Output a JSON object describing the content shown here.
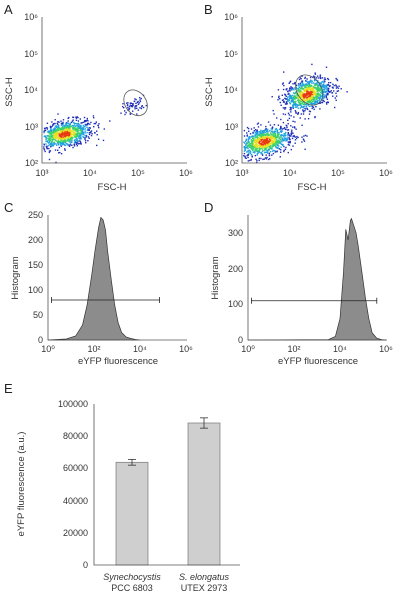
{
  "figure": {
    "panels": [
      "A",
      "B",
      "C",
      "D",
      "E"
    ]
  },
  "chart_data": [
    {
      "panel": "A",
      "type": "scatter",
      "xlabel": "FSC-H",
      "ylabel": "SSC-H",
      "xscale": "log",
      "yscale": "log",
      "xlim": [
        1000,
        1000000
      ],
      "ylim": [
        100,
        1000000
      ],
      "xticks": [
        "10³",
        "10⁴",
        "10⁵",
        "10⁶"
      ],
      "yticks": [
        "10²",
        "10³",
        "10⁴",
        "10⁵",
        "10⁶"
      ],
      "colormap": [
        "#1f2fb8",
        "#1fa0e0",
        "#3cd16a",
        "#e8e020",
        "#e83a10"
      ],
      "clusters": [
        {
          "center_log": [
            3.45,
            2.8
          ],
          "spread_log": [
            0.3,
            0.18
          ],
          "density": "high"
        },
        {
          "center_log": [
            4.9,
            3.6
          ],
          "spread_log": [
            0.12,
            0.1
          ],
          "density": "low"
        }
      ],
      "gate": {
        "center_log": [
          4.95,
          3.65
        ],
        "radii_log": [
          0.22,
          0.38
        ],
        "shape": "ellipse"
      }
    },
    {
      "panel": "B",
      "type": "scatter",
      "xlabel": "FSC-H",
      "ylabel": "SSC-H",
      "xscale": "log",
      "yscale": "log",
      "xlim": [
        1000,
        1000000
      ],
      "ylim": [
        100,
        1000000
      ],
      "xticks": [
        "10³",
        "10⁴",
        "10⁵",
        "10⁶"
      ],
      "yticks": [
        "10²",
        "10³",
        "10⁴",
        "10⁵",
        "10⁶"
      ],
      "colormap": [
        "#1f2fb8",
        "#1fa0e0",
        "#3cd16a",
        "#e8e020",
        "#e83a10"
      ],
      "clusters": [
        {
          "center_log": [
            3.45,
            2.6
          ],
          "spread_log": [
            0.3,
            0.2
          ],
          "density": "high"
        },
        {
          "center_log": [
            4.35,
            3.9
          ],
          "spread_log": [
            0.25,
            0.22
          ],
          "density": "high"
        }
      ],
      "gate": {
        "center_log": [
          4.4,
          4.0
        ],
        "radii_log": [
          0.25,
          0.45
        ],
        "shape": "ellipse"
      }
    },
    {
      "panel": "C",
      "type": "area",
      "xlabel": "eYFP fluorescence",
      "ylabel": "Histogram",
      "xscale": "log",
      "xlim": [
        1,
        1000000
      ],
      "ylim": [
        0,
        250
      ],
      "xticks": [
        "10⁰",
        "10²",
        "10⁴",
        "10⁶"
      ],
      "yticks": [
        "0",
        "50",
        "100",
        "150",
        "200",
        "250"
      ],
      "x_log": [
        0.0,
        0.8,
        1.2,
        1.5,
        1.7,
        1.9,
        2.05,
        2.2,
        2.3,
        2.4,
        2.5,
        2.6,
        2.75,
        2.9,
        3.05,
        3.2,
        3.4,
        3.6,
        3.8,
        4.0
      ],
      "y": [
        0,
        2,
        8,
        30,
        70,
        130,
        180,
        225,
        245,
        240,
        220,
        175,
        120,
        70,
        35,
        15,
        6,
        3,
        1,
        0
      ],
      "gate": {
        "x_log": [
          0.15,
          4.85
        ],
        "y": 80
      }
    },
    {
      "panel": "D",
      "type": "area",
      "xlabel": "eYFP fluorescence",
      "ylabel": "Histogram",
      "xscale": "log",
      "xlim": [
        1,
        1000000
      ],
      "ylim": [
        0,
        350
      ],
      "xticks": [
        "10⁰",
        "10²",
        "10⁴",
        "10⁶"
      ],
      "yticks": [
        "0",
        "100",
        "200",
        "300"
      ],
      "x_log": [
        0.0,
        3.5,
        3.8,
        4.0,
        4.15,
        4.25,
        4.35,
        4.45,
        4.5,
        4.6,
        4.7,
        4.8,
        4.95,
        5.1,
        5.25,
        5.4,
        5.6,
        5.8,
        6.0
      ],
      "y": [
        0,
        1,
        10,
        60,
        190,
        310,
        280,
        335,
        340,
        320,
        300,
        260,
        190,
        120,
        60,
        20,
        5,
        1,
        0
      ],
      "gate": {
        "x_log": [
          0.15,
          5.6
        ],
        "y": 110
      }
    },
    {
      "panel": "E",
      "type": "bar",
      "ylabel": "eYFP fluorescence (a.u.)",
      "ylim": [
        0,
        100000
      ],
      "yticks": [
        "0",
        "20000",
        "40000",
        "60000",
        "80000",
        "100000"
      ],
      "categories": [
        {
          "line1": "Synechocystis",
          "line2": "PCC 6803"
        },
        {
          "line1": "S. elongatus",
          "line2": "UTEX 2973"
        }
      ],
      "values": [
        63800,
        88200
      ],
      "errors": [
        1800,
        3200
      ],
      "bar_color": "#cfcfcf"
    }
  ]
}
